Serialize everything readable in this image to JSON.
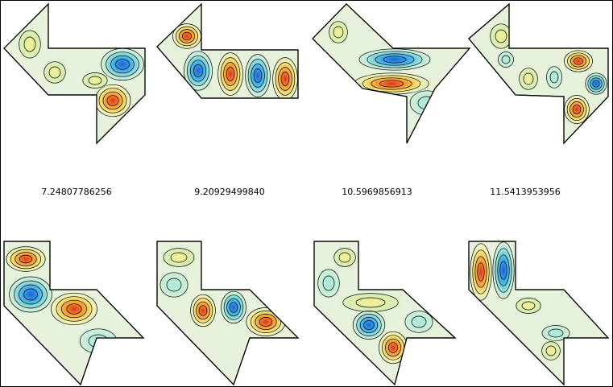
{
  "labels": [
    "7.24807786256",
    "9.20929499840",
    "10.5969856913",
    "11.5413953956"
  ]
}
